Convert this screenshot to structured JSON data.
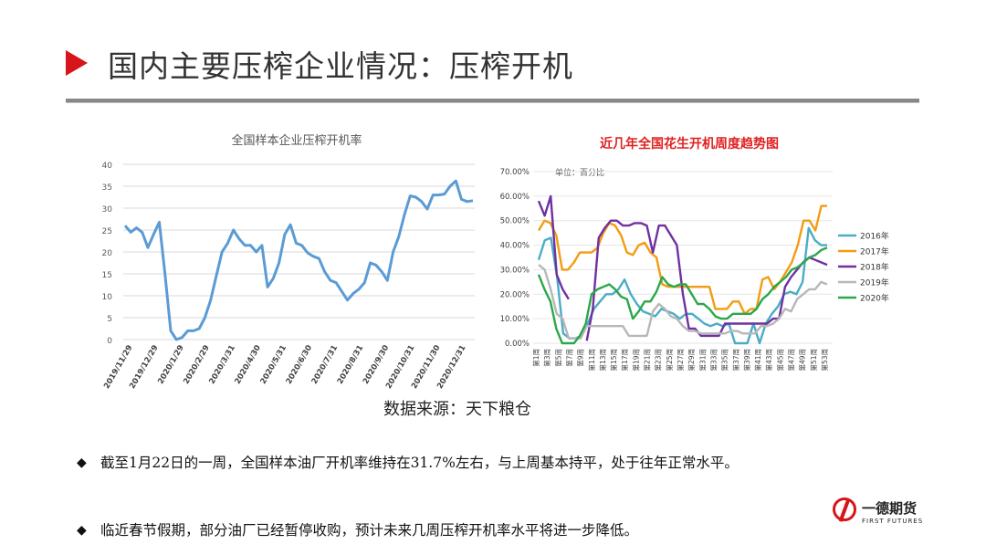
{
  "page": {
    "title": "国内主要压榨企业情况：压榨开机",
    "source": "数据来源：天下粮仓",
    "accent": "#d7141a"
  },
  "bullets": [
    "截至1月22日的一周，全国样本油厂开机率维持在31.7%左右，与上周基本持平，处于往年正常水平。",
    "临近春节假期，部分油厂已经暂停收购，预计未来几周压榨开机率水平将进一步降低。"
  ],
  "logo": {
    "cn": "一德期货",
    "en": "FIRST FUTURES"
  },
  "chart_data": [
    {
      "type": "line",
      "title": "全国样本企业压榨开机率",
      "color": "#5b9bd5",
      "ylim": [
        0,
        40
      ],
      "yticks": [
        0,
        5,
        10,
        15,
        20,
        25,
        30,
        35,
        40
      ],
      "x_tick_labels": [
        "2019/11/29",
        "2019/12/29",
        "2020/1/29",
        "2020/2/29",
        "2020/3/31",
        "2020/4/30",
        "2020/5/31",
        "2020/6/30",
        "2020/7/31",
        "2020/8/31",
        "2020/9/30",
        "2020/10/31",
        "2020/11/30",
        "2020/12/31"
      ],
      "grid": "horizontal",
      "values": [
        26,
        24.5,
        25.5,
        24.5,
        21,
        24,
        26.8,
        15,
        2,
        0,
        0.5,
        2,
        2,
        2.5,
        5,
        9,
        14.5,
        20,
        22,
        25,
        23,
        21.5,
        21.5,
        20,
        21.5,
        12,
        14,
        17.5,
        24,
        26.2,
        22,
        21.5,
        19.8,
        19,
        18.5,
        15.5,
        13.5,
        13,
        11,
        9,
        10.5,
        11.5,
        13,
        17.5,
        17,
        15.5,
        13.5,
        20,
        23.5,
        28.5,
        32.8,
        32.5,
        31.5,
        29.8,
        33,
        33,
        33.2,
        35,
        36.2,
        32,
        31.5,
        31.7
      ]
    },
    {
      "type": "line",
      "title": "近几年全国花生开机周度趋势图",
      "title_color": "#e02020",
      "unit_note": "单位：百分比",
      "ylim": [
        0,
        70
      ],
      "ytick_labels": [
        "0.00%",
        "10.00%",
        "20.00%",
        "30.00%",
        "40.00%",
        "50.00%",
        "60.00%",
        "70.00%"
      ],
      "x_tick_labels": [
        "第1周",
        "第3周",
        "第5周",
        "第7周",
        "第9周",
        "第11周",
        "第13周",
        "第15周",
        "第17周",
        "第19周",
        "第21周",
        "第23周",
        "第25周",
        "第27周",
        "第29周",
        "第31周",
        "第33周",
        "第35周",
        "第37周",
        "第39周",
        "第41周",
        "第43周",
        "第45周",
        "第47周",
        "第49周",
        "第51周",
        "第53周"
      ],
      "legend": "right",
      "series": [
        {
          "name": "2016年",
          "color": "#4bacc6",
          "values": [
            34,
            42,
            43,
            27,
            4,
            2,
            2,
            3,
            8,
            14,
            17,
            20,
            20,
            22,
            26,
            20,
            16,
            13,
            12,
            11,
            14,
            13,
            12,
            10,
            12,
            12,
            10,
            8,
            7,
            8,
            7,
            8,
            0,
            0,
            0,
            8,
            0,
            8,
            12,
            15,
            20,
            21,
            20,
            25,
            47,
            42,
            40,
            40
          ]
        },
        {
          "name": "2017年",
          "color": "#f39c12",
          "values": [
            46,
            50,
            49,
            44,
            30,
            30,
            33,
            37,
            37,
            37,
            39,
            45,
            49,
            48,
            44,
            37,
            36,
            40,
            41,
            37,
            35,
            24,
            23,
            23,
            23,
            23,
            23,
            23,
            23,
            23,
            14,
            14,
            14,
            17,
            17,
            12,
            14,
            14,
            26,
            27,
            22,
            25,
            29,
            33,
            40,
            50,
            50,
            46,
            56,
            56
          ]
        },
        {
          "name": "2018年",
          "color": "#7030a0",
          "values": [
            58,
            52,
            60,
            28,
            22,
            18,
            null,
            null,
            1,
            14,
            43,
            47,
            50,
            50,
            48,
            48,
            49,
            49,
            48,
            37,
            48,
            48,
            44,
            40,
            20,
            6,
            6,
            3,
            3,
            3,
            3,
            8,
            8,
            8,
            8,
            8,
            8,
            8,
            8,
            10,
            10,
            23,
            27,
            30,
            33,
            35,
            34,
            33,
            32
          ]
        },
        {
          "name": "2019年",
          "color": "#b7b7b7",
          "values": [
            32,
            30,
            22,
            12,
            10,
            2,
            2,
            2,
            7,
            7,
            7,
            7,
            7,
            7,
            7,
            3,
            3,
            3,
            3,
            13,
            16,
            14,
            11,
            10,
            7,
            5,
            5,
            4,
            4,
            4,
            4,
            4,
            5,
            5,
            4,
            4,
            4,
            7,
            7,
            8,
            10,
            14,
            13,
            18,
            20,
            22,
            22,
            25,
            24
          ]
        },
        {
          "name": "2020年",
          "color": "#2aa84a",
          "values": [
            28,
            22,
            17,
            6,
            0,
            0,
            0,
            3,
            8,
            20,
            22,
            23,
            24,
            22,
            19,
            18,
            10,
            13,
            17,
            17,
            21,
            27,
            24,
            23,
            24,
            24,
            20,
            16,
            16,
            14,
            11,
            10,
            10,
            12,
            12,
            12,
            12,
            14,
            18,
            20,
            23,
            25,
            27,
            30,
            31,
            33,
            35,
            36,
            38,
            39
          ]
        }
      ]
    }
  ]
}
